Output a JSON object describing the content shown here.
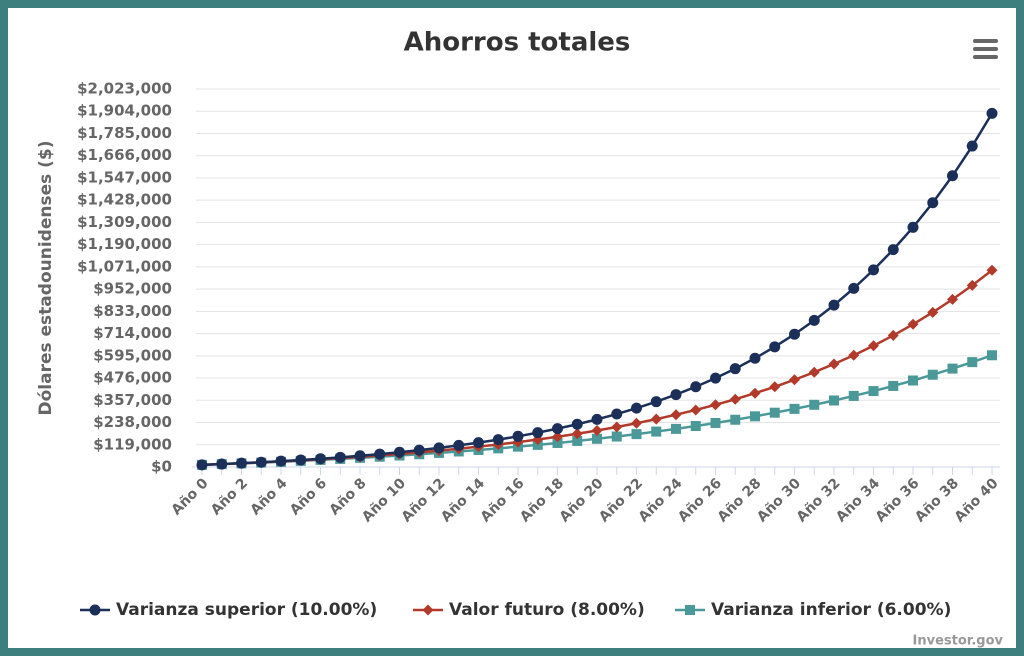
{
  "chart_data": {
    "type": "line",
    "title": "Ahorros totales",
    "y_label": "Dólares estadounidenses ($)",
    "credits": "Investor.gov",
    "grid": true,
    "categories": [
      "Año 0",
      null,
      "Año 2",
      null,
      "Año 4",
      null,
      "Año 6",
      null,
      "Año 8",
      null,
      "Año 10",
      null,
      "Año 12",
      null,
      "Año 14",
      null,
      "Año 16",
      null,
      "Año 18",
      null,
      "Año 20",
      null,
      "Año 22",
      null,
      "Año 24",
      null,
      "Año 26",
      null,
      "Año 28",
      null,
      "Año 30",
      null,
      "Año 32",
      null,
      "Año 34",
      null,
      "Año 36",
      null,
      "Año 38",
      null,
      "Año 40"
    ],
    "ylim": [
      0,
      2023000
    ],
    "yticks": [
      {
        "value": 0,
        "label": "$0"
      },
      {
        "value": 119000,
        "label": "$119,000"
      },
      {
        "value": 238000,
        "label": "$238,000"
      },
      {
        "value": 357000,
        "label": "$357,000"
      },
      {
        "value": 476000,
        "label": "$476,000"
      },
      {
        "value": 595000,
        "label": "$595,000"
      },
      {
        "value": 714000,
        "label": "$714,000"
      },
      {
        "value": 833000,
        "label": "$833,000"
      },
      {
        "value": 952000,
        "label": "$952,000"
      },
      {
        "value": 1071000,
        "label": "$1,071,000"
      },
      {
        "value": 1190000,
        "label": "$1,190,000"
      },
      {
        "value": 1309000,
        "label": "$1,309,000"
      },
      {
        "value": 1428000,
        "label": "$1,428,000"
      },
      {
        "value": 1547000,
        "label": "$1,547,000"
      },
      {
        "value": 1666000,
        "label": "$1,666,000"
      },
      {
        "value": 1785000,
        "label": "$1,785,000"
      },
      {
        "value": 1904000,
        "label": "$1,904,000"
      },
      {
        "value": 2023000,
        "label": "$2,023,000"
      }
    ],
    "series": [
      {
        "name": "Varianza superior (10.00%)",
        "color": "#1b2f58",
        "marker": "circle",
        "values": [
          11500,
          15750,
          20425,
          25568,
          31224,
          37447,
          44291,
          51820,
          60102,
          69212,
          79234,
          90257,
          102383,
          115721,
          130393,
          146533,
          164286,
          183815,
          205296,
          228926,
          254918,
          283510,
          314961,
          349557,
          387613,
          429474,
          475521,
          526173,
          581890,
          643179,
          710597,
          784757,
          866333,
          956066,
          1054773,
          1163350,
          1282785,
          1414164,
          1558680,
          1717648,
          1892513
        ]
      },
      {
        "name": "Valor futuro (8.00%)",
        "color": "#b23a2b",
        "marker": "diamond",
        "values": [
          11500,
          15520,
          19862,
          24551,
          29615,
          35084,
          40991,
          47370,
          54260,
          61701,
          69737,
          78416,
          87789,
          97912,
          108845,
          120653,
          133405,
          147177,
          162051,
          178115,
          195464,
          214201,
          234437,
          256292,
          279895,
          305387,
          332918,
          362651,
          394763,
          429444,
          466900,
          507352,
          551040,
          598223,
          649181,
          704215,
          763652,
          827844,
          897172,
          972046,
          1052910
        ]
      },
      {
        "name": "Varianza inferior (6.00%)",
        "color": "#4b9898",
        "marker": "square",
        "values": [
          11500,
          15290,
          19307,
          23565,
          28079,
          32864,
          37936,
          43312,
          49011,
          55052,
          61455,
          68242,
          75437,
          83063,
          91147,
          99716,
          108799,
          118427,
          128633,
          139451,
          150918,
          163073,
          175957,
          189614,
          204091,
          219436,
          235702,
          252944,
          271221,
          290594,
          311130,
          332898,
          355972,
          380430,
          406356,
          433837,
          462967,
          493845,
          526576,
          561271,
          598047
        ]
      }
    ]
  }
}
